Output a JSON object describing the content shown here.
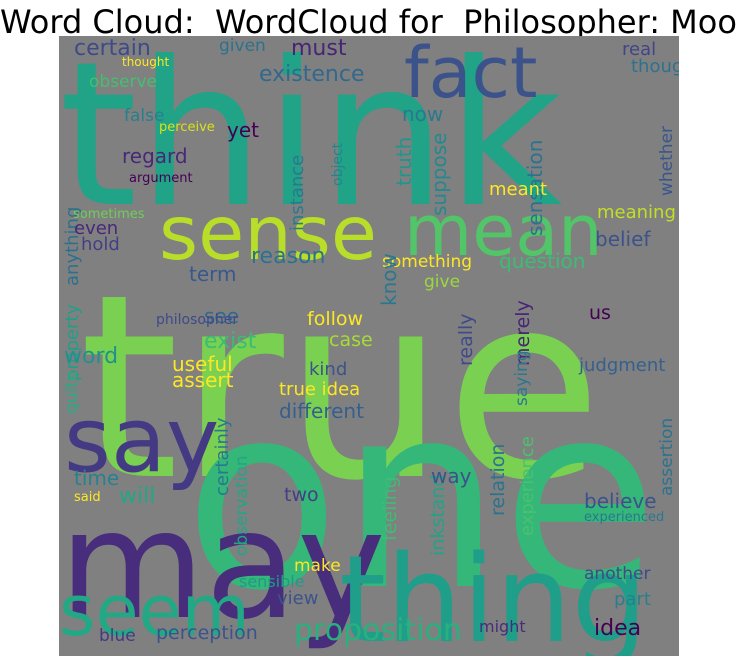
{
  "title": "Word Cloud:  WordCloud for  Philosopher: Moore",
  "palette": {
    "background": "#808080",
    "viridis_lime": "#b4dc2c",
    "viridis_green": "#7ad151",
    "viridis_teal": "#22a884",
    "viridis_blue": "#2a788e",
    "viridis_indigo": "#414487",
    "viridis_purple": "#482878",
    "viridis_yellow": "#fde725"
  },
  "words": [
    {
      "text": "true",
      "color": "#7ad151"
    },
    {
      "text": "think",
      "color": "#20a386"
    },
    {
      "text": "one",
      "color": "#35b779"
    },
    {
      "text": "may",
      "color": "#472d7b"
    },
    {
      "text": "say",
      "color": "#443983"
    },
    {
      "text": "thing",
      "color": "#1f9e89"
    },
    {
      "text": "sense",
      "color": "#b8de29"
    },
    {
      "text": "mean",
      "color": "#52c569"
    },
    {
      "text": "fact",
      "color": "#3b528b"
    },
    {
      "text": "seem",
      "color": "#22a884"
    },
    {
      "text": "proposition",
      "color": "#2ab07f"
    },
    {
      "text": "certain",
      "color": "#3e4a89"
    },
    {
      "text": "must",
      "color": "#482475"
    },
    {
      "text": "real",
      "color": "#414487"
    },
    {
      "text": "though",
      "color": "#2c728e"
    },
    {
      "text": "existence",
      "color": "#31688e"
    },
    {
      "text": "given",
      "color": "#2d718e"
    },
    {
      "text": "observe",
      "color": "#44bf70"
    },
    {
      "text": "thought",
      "color": "#fde725"
    },
    {
      "text": "false",
      "color": "#277f8e"
    },
    {
      "text": "perceive",
      "color": "#d8e219"
    },
    {
      "text": "yet",
      "color": "#440154"
    },
    {
      "text": "regard",
      "color": "#482878"
    },
    {
      "text": "argument",
      "color": "#440154"
    },
    {
      "text": "instance",
      "color": "#2a788e"
    },
    {
      "text": "object",
      "color": "#26828e"
    },
    {
      "text": "truth",
      "color": "#1f968b"
    },
    {
      "text": "suppose",
      "color": "#23898e"
    },
    {
      "text": "now",
      "color": "#2a788e"
    },
    {
      "text": "sensation",
      "color": "#2c728e"
    },
    {
      "text": "whether",
      "color": "#39568c"
    },
    {
      "text": "meant",
      "color": "#fde725"
    },
    {
      "text": "meaning",
      "color": "#c2df23"
    },
    {
      "text": "belief",
      "color": "#3b528b"
    },
    {
      "text": "anything",
      "color": "#2d708e"
    },
    {
      "text": "even",
      "color": "#482878"
    },
    {
      "text": "hold",
      "color": "#433e85"
    },
    {
      "text": "sometimes",
      "color": "#6ece58"
    },
    {
      "text": "reason",
      "color": "#2c728e"
    },
    {
      "text": "term",
      "color": "#38588c"
    },
    {
      "text": "something",
      "color": "#fde725"
    },
    {
      "text": "question",
      "color": "#3dbc74"
    },
    {
      "text": "know",
      "color": "#2a788e"
    },
    {
      "text": "give",
      "color": "#9bd93c"
    },
    {
      "text": "exist",
      "color": "#3bbb75"
    },
    {
      "text": "see",
      "color": "#31688e"
    },
    {
      "text": "philosopher",
      "color": "#3e4989"
    },
    {
      "text": "property",
      "color": "#1f9f88"
    },
    {
      "text": "word",
      "color": "#21918c"
    },
    {
      "text": "follow",
      "color": "#fde725"
    },
    {
      "text": "case",
      "color": "#a8db34"
    },
    {
      "text": "kind",
      "color": "#3b528b"
    },
    {
      "text": "useful",
      "color": "#fde725"
    },
    {
      "text": "assert",
      "color": "#fde725"
    },
    {
      "text": "really",
      "color": "#3e4a89"
    },
    {
      "text": "merely",
      "color": "#482576"
    },
    {
      "text": "us",
      "color": "#440154"
    },
    {
      "text": "judgment",
      "color": "#35608d"
    },
    {
      "text": "saying",
      "color": "#2a788e"
    },
    {
      "text": "true idea",
      "color": "#fde725"
    },
    {
      "text": "different",
      "color": "#355f8d"
    },
    {
      "text": "quite",
      "color": "#25ac82"
    },
    {
      "text": "certainly",
      "color": "#2a788e"
    },
    {
      "text": "time",
      "color": "#26828e"
    },
    {
      "text": "will",
      "color": "#22a785"
    },
    {
      "text": "said",
      "color": "#fde725"
    },
    {
      "text": "observation",
      "color": "#21a685"
    },
    {
      "text": "two",
      "color": "#433e85"
    },
    {
      "text": "feeling",
      "color": "#3dbc74"
    },
    {
      "text": "inkstand",
      "color": "#20a386"
    },
    {
      "text": "way",
      "color": "#3b528b"
    },
    {
      "text": "relation",
      "color": "#2c728e"
    },
    {
      "text": "experience",
      "color": "#4ac16d"
    },
    {
      "text": "believe",
      "color": "#3b528b"
    },
    {
      "text": "assertion",
      "color": "#2c728e"
    },
    {
      "text": "make",
      "color": "#fde725"
    },
    {
      "text": "sensible",
      "color": "#1f9a8a"
    },
    {
      "text": "view",
      "color": "#3b528b"
    },
    {
      "text": "another",
      "color": "#3e4a89"
    },
    {
      "text": "part",
      "color": "#277f8e"
    },
    {
      "text": "blue",
      "color": "#443a83"
    },
    {
      "text": "perception",
      "color": "#3b528b"
    },
    {
      "text": "might",
      "color": "#472d7b"
    },
    {
      "text": "idea",
      "color": "#440154"
    },
    {
      "text": "experienced",
      "color": "#2a788e"
    }
  ]
}
